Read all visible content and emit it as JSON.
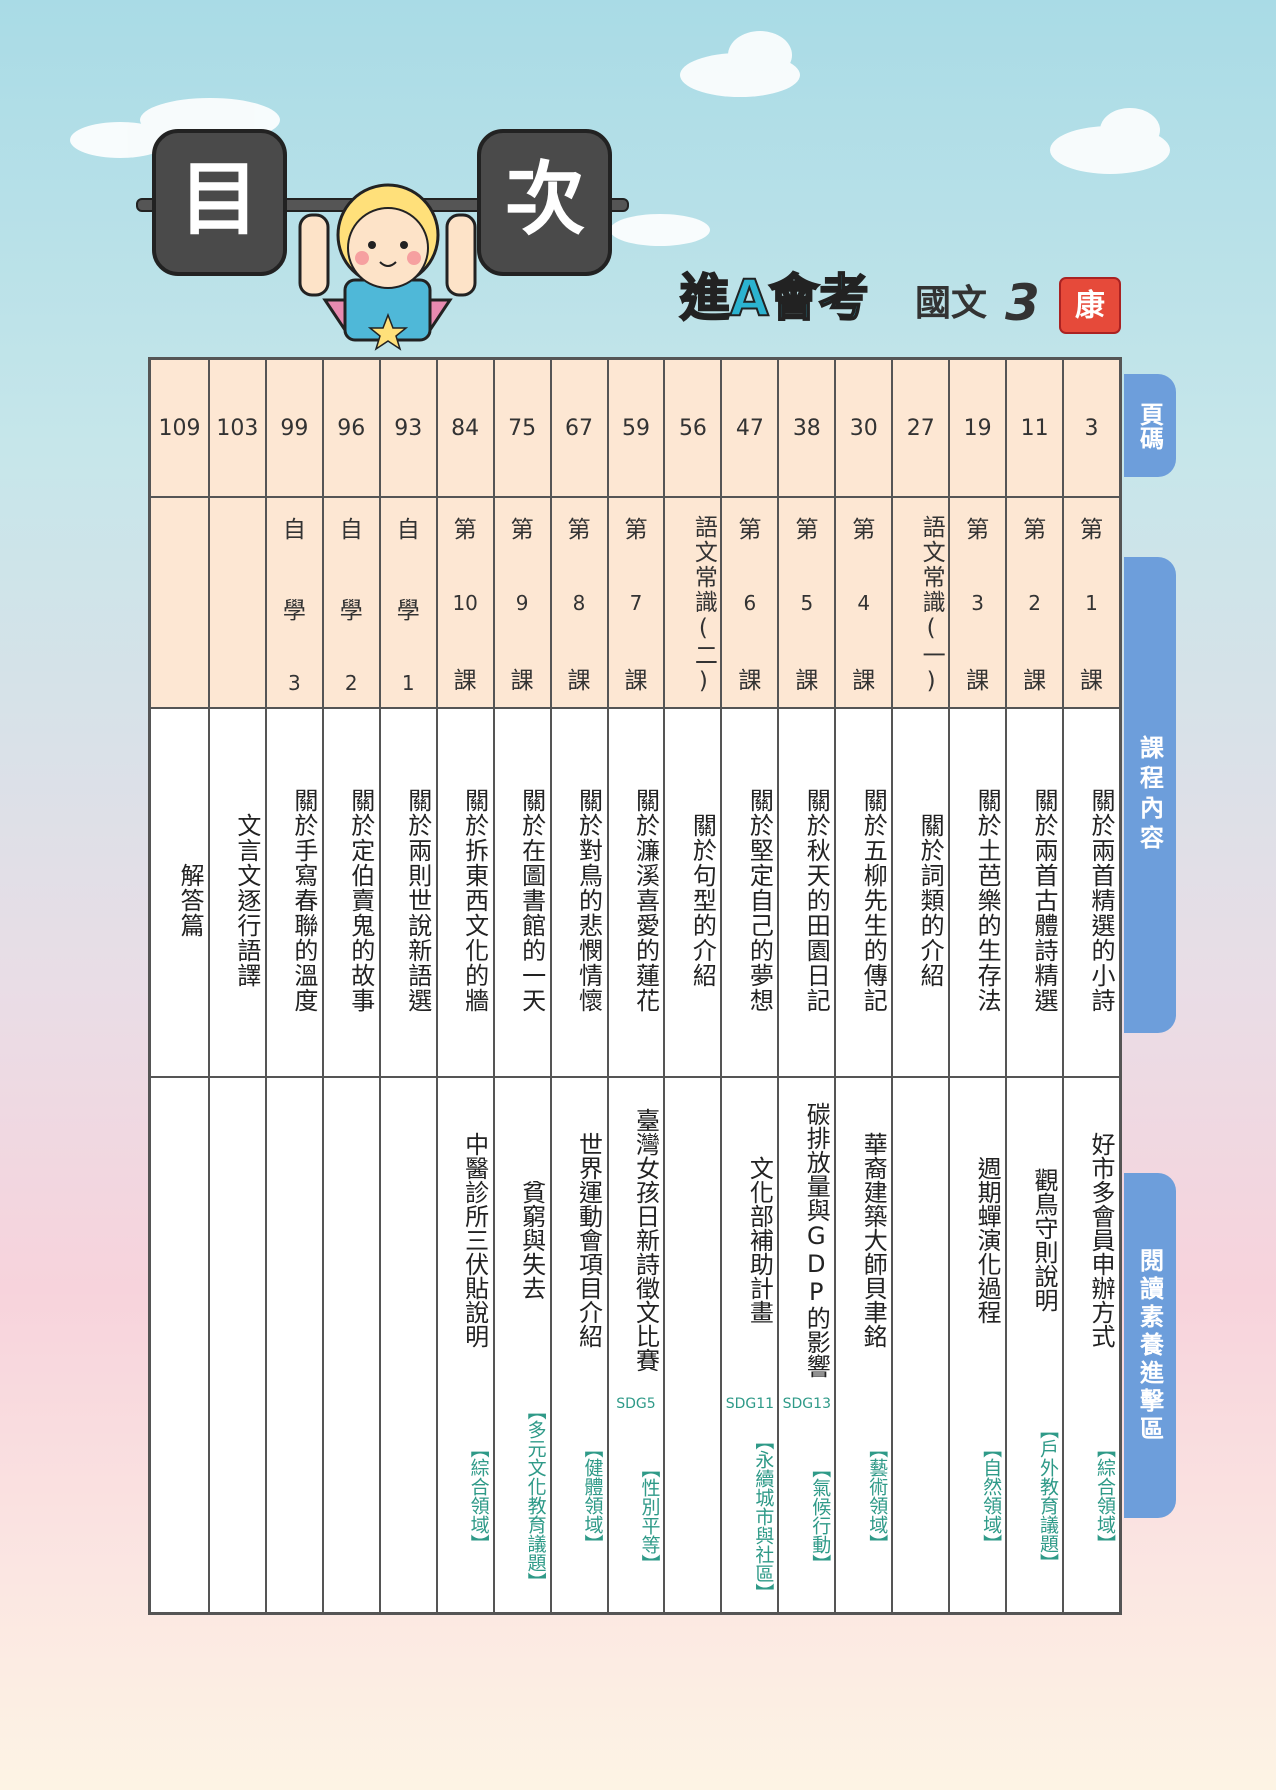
{
  "header": {
    "title_left": "目",
    "title_right": "次",
    "brand": "進A會考",
    "subject": "國文",
    "volume": "3",
    "publisher": "康"
  },
  "tabs": [
    "頁碼",
    "課程內容",
    "閱讀素養進擊區"
  ],
  "table": {
    "columns": [
      {
        "page": 3,
        "lesson": [
          "第",
          "1",
          "課"
        ],
        "topic": "關於兩首精選的小詩",
        "reading": "好市多會員申辦方式",
        "tag": "【綜合領域】"
      },
      {
        "page": 11,
        "lesson": [
          "第",
          "2",
          "課"
        ],
        "topic": "關於兩首古體詩精選",
        "reading": "觀鳥守則說明",
        "tag": "【戶外教育議題】"
      },
      {
        "page": 19,
        "lesson": [
          "第",
          "3",
          "課"
        ],
        "topic": "關於土芭樂的生存法",
        "reading": "週期蟬演化過程",
        "tag": "【自然領域】"
      },
      {
        "page": 27,
        "lesson": "語文常識(一)",
        "topic": "關於詞類的介紹"
      },
      {
        "page": 30,
        "lesson": [
          "第",
          "4",
          "課"
        ],
        "topic": "關於五柳先生的傳記",
        "reading": "華裔建築大師貝聿銘",
        "tag": "【藝術領域】"
      },
      {
        "page": 38,
        "lesson": [
          "第",
          "5",
          "課"
        ],
        "topic": "關於秋天的田園日記",
        "reading": "碳排放量與GDP的影響",
        "tag_code": "SDG13",
        "tag": "【氣候行動】"
      },
      {
        "page": 47,
        "lesson": [
          "第",
          "6",
          "課"
        ],
        "topic": "關於堅定自己的夢想",
        "reading": "文化部補助計畫",
        "tag_code": "SDG11",
        "tag": "【永續城市與社區】"
      },
      {
        "page": 56,
        "lesson": "語文常識(二)",
        "topic": "關於句型的介紹"
      },
      {
        "page": 59,
        "lesson": [
          "第",
          "7",
          "課"
        ],
        "topic": "關於濂溪喜愛的蓮花",
        "reading": "臺灣女孩日新詩徵文比賽",
        "tag_code": "SDG5",
        "tag": "【性別平等】"
      },
      {
        "page": 67,
        "lesson": [
          "第",
          "8",
          "課"
        ],
        "topic": "關於對鳥的悲憫情懷",
        "reading": "世界運動會項目介紹",
        "tag": "【健體領域】"
      },
      {
        "page": 75,
        "lesson": [
          "第",
          "9",
          "課"
        ],
        "topic": "關於在圖書館的一天",
        "reading": "貧窮與失去",
        "tag": "【多元文化教育議題】"
      },
      {
        "page": 84,
        "lesson": [
          "第",
          "10",
          "課"
        ],
        "topic": "關於拆東西文化的牆",
        "reading": "中醫診所三伏貼說明",
        "tag": "【綜合領域】"
      },
      {
        "page": 93,
        "lesson": [
          "自",
          "學",
          "1"
        ],
        "topic": "關於兩則世說新語選"
      },
      {
        "page": 96,
        "lesson": [
          "自",
          "學",
          "2"
        ],
        "topic": "關於定伯賣鬼的故事"
      },
      {
        "page": 99,
        "lesson": [
          "自",
          "學",
          "3"
        ],
        "topic": "關於手寫春聯的溫度"
      },
      {
        "page": 103,
        "topic": "文言文逐行語譯"
      },
      {
        "page": 109,
        "topic": "解答篇"
      }
    ]
  }
}
